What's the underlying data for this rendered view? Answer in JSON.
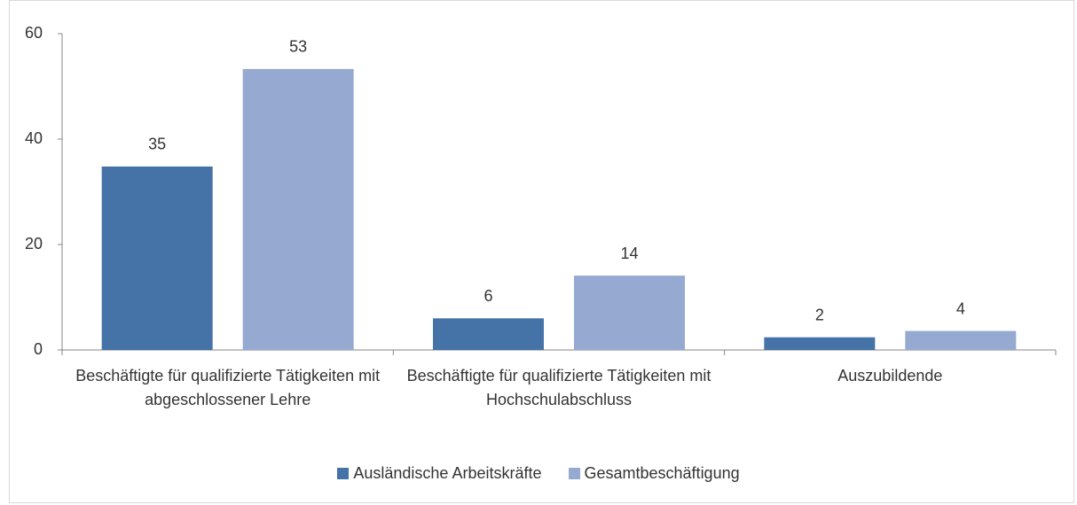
{
  "chart_data": {
    "type": "bar",
    "categories": [
      "Beschäftigte für qualifizierte Tätigkeiten mit abgeschlossener Lehre",
      "Beschäftigte für qualifizierte Tätigkeiten mit Hochschulabschluss",
      "Auszubildende"
    ],
    "series": [
      {
        "name": "Ausländische Arbeitskräfte",
        "color": "#4572a7",
        "values": [
          34.8,
          6,
          2.4
        ],
        "value_labels": [
          "35",
          "6",
          "2"
        ]
      },
      {
        "name": "Gesamtbeschäftigung",
        "color": "#95a9d1",
        "values": [
          53.3,
          14.1,
          3.6
        ],
        "value_labels": [
          "53",
          "14",
          "4"
        ]
      }
    ],
    "ylim": [
      0,
      60
    ],
    "yticks": [
      0,
      20,
      40,
      60
    ],
    "grid": false,
    "legend": "bottom"
  }
}
